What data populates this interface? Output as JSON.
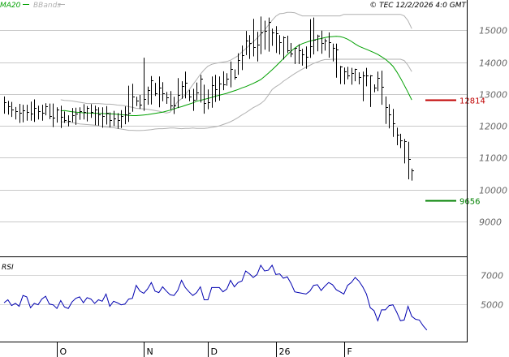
{
  "header": {
    "legend": [
      {
        "label": "MA20",
        "color": "#00a000"
      },
      {
        "label": "BBands",
        "color": "#b0b0b0"
      }
    ],
    "copyright": "© TEC 12/2/2026 4:0 GMT"
  },
  "levels": {
    "resistance": {
      "value": 12814,
      "label": "12814",
      "color": "#c00000"
    },
    "support": {
      "value": 9656,
      "label": "9656",
      "color": "#008000"
    }
  },
  "chart_data": [
    {
      "type": "ohlc",
      "y_axis": {
        "ticks": [
          9000,
          10000,
          11000,
          12000,
          13000,
          14000,
          15000
        ],
        "tick_labels": [
          "9000",
          "10000",
          "11000",
          "12000",
          "13000",
          "14000",
          "15000"
        ],
        "ylim": [
          7900,
          15950
        ],
        "side": "right"
      },
      "x_labels": [
        "O",
        "N",
        "D",
        "26",
        "F"
      ],
      "x_label_index": [
        14,
        37,
        54,
        72,
        90
      ],
      "grid": "horizontal",
      "series": [
        {
          "name": "MA20",
          "color": "#00a000",
          "values": [
            12470,
            12480,
            12460,
            12440,
            12430,
            12420,
            12410,
            12405,
            12400,
            12395,
            12390,
            12385,
            12380,
            12375,
            12370,
            12360,
            12350,
            12340,
            12330,
            12320,
            12320,
            12330,
            12340,
            12350,
            12370,
            12390,
            12410,
            12430,
            12460,
            12490,
            12530,
            12570,
            12600,
            12640,
            12680,
            12720,
            12770,
            12800,
            12830,
            12860,
            12890,
            12930,
            12960,
            12990,
            13020,
            13060,
            13100,
            13140,
            13190,
            13230,
            13280,
            13330,
            13390,
            13450,
            13550,
            13650,
            13760,
            13870,
            13990,
            14110,
            14230,
            14340,
            14440,
            14520,
            14580,
            14620,
            14660,
            14690,
            14720,
            14740,
            14770,
            14790,
            14800,
            14810,
            14800,
            14770,
            14720,
            14650,
            14570,
            14500,
            14450,
            14400,
            14350,
            14300,
            14240,
            14170,
            14090,
            13990,
            13870,
            13700,
            13500,
            13280,
            13050,
            12814
          ]
        },
        {
          "name": "BB_upper",
          "color": "#b0b0b0",
          "values": [
            12820,
            12800,
            12790,
            12780,
            12760,
            12740,
            12720,
            12700,
            12700,
            12700,
            12700,
            12690,
            12680,
            12680,
            12670,
            12650,
            12640,
            12630,
            12600,
            12580,
            12550,
            12540,
            12530,
            12520,
            12500,
            12480,
            12460,
            12430,
            12400,
            12430,
            12600,
            12760,
            12850,
            12980,
            13130,
            13290,
            13450,
            13620,
            13760,
            13870,
            13930,
            13960,
            13980,
            14000,
            14020,
            14060,
            14130,
            14200,
            14320,
            14420,
            14530,
            14640,
            14750,
            14880,
            15000,
            15160,
            15310,
            15440,
            15520,
            15530,
            15560,
            15560,
            15550,
            15500,
            15450,
            15450,
            15450,
            15450,
            15450,
            15450,
            15450,
            15450,
            15450,
            15450,
            15450,
            15500,
            15500,
            15500,
            15500,
            15500,
            15500,
            15500,
            15500,
            15500,
            15500,
            15500,
            15500,
            15500,
            15500,
            15500,
            15500,
            15450,
            15300,
            15050
          ]
        },
        {
          "name": "BB_lower",
          "color": "#b0b0b0",
          "values": [
            12120,
            12120,
            12120,
            12100,
            12080,
            12060,
            12050,
            12040,
            12030,
            12020,
            12000,
            11980,
            11960,
            11950,
            11940,
            11920,
            11900,
            11880,
            11860,
            11860,
            11850,
            11850,
            11860,
            11870,
            11880,
            11900,
            11910,
            11910,
            11920,
            11930,
            11930,
            11920,
            11910,
            11920,
            11920,
            11930,
            11920,
            11920,
            11920,
            11930,
            11950,
            11970,
            12000,
            12040,
            12080,
            12130,
            12190,
            12260,
            12340,
            12410,
            12490,
            12570,
            12630,
            12700,
            12800,
            12960,
            13140,
            13230,
            13300,
            13400,
            13480,
            13560,
            13640,
            13710,
            13780,
            13840,
            13900,
            13960,
            14000,
            14050,
            14080,
            14080,
            14090,
            14090,
            14090,
            14090,
            14090,
            14090,
            14090,
            14090,
            14090,
            14090,
            14090,
            14090,
            14090,
            14090,
            14090,
            14090,
            14090,
            14090,
            14090,
            14050,
            13900,
            13700
          ]
        },
        {
          "name": "Close",
          "color": "#000000",
          "values": [
            12750,
            12620,
            12500,
            12450,
            12420,
            12480,
            12430,
            12380,
            12560,
            12450,
            12400,
            12620,
            12300,
            12250,
            12500,
            12280,
            12170,
            12160,
            12320,
            12380,
            12470,
            12430,
            12550,
            12430,
            12500,
            12350,
            12300,
            12420,
            12190,
            12240,
            12180,
            12300,
            12350,
            12420,
            12910,
            12790,
            12660,
            12840,
            13130,
            13440,
            13010,
            13200,
            13020,
            12890,
            12640,
            12650,
            12980,
            13250,
            13350,
            12920,
            12810,
            13040,
            13480,
            12720,
            12750,
            13280,
            13160,
            13320,
            13300,
            13490,
            13790,
            13520,
            14070,
            14210,
            14680,
            14600,
            14460,
            14540,
            14940,
            14970,
            15270,
            14930,
            14910,
            14630,
            14780,
            14370,
            14260,
            14440,
            14370,
            14250,
            14170,
            14500,
            14710,
            14820,
            14610,
            14680,
            14620,
            14440,
            14390,
            13860,
            13710,
            13590,
            13650,
            13790,
            13530,
            13590,
            13580,
            13590,
            13210,
            13510,
            13220,
            12590,
            12350,
            12070,
            11710,
            11540,
            11510,
            10960,
            10600
          ]
        },
        {
          "name": "High",
          "color": "#000000",
          "values": [
            12920,
            12780,
            12750,
            12590,
            12690,
            12660,
            12660,
            12760,
            12830,
            12630,
            12660,
            12710,
            12700,
            12700,
            12580,
            12630,
            12450,
            12330,
            12560,
            12570,
            12580,
            12680,
            12620,
            12680,
            12630,
            12580,
            12580,
            12620,
            12420,
            12470,
            12400,
            12490,
            12610,
            13260,
            13320,
            12910,
            12970,
            14140,
            13230,
            13560,
            13350,
            13550,
            13370,
            13060,
            13090,
            12910,
            13500,
            13400,
            13700,
            13130,
            13160,
            13360,
            13600,
            13290,
            13140,
            13550,
            13600,
            13550,
            13710,
            13650,
            14020,
            13770,
            14280,
            14520,
            14980,
            14850,
            15360,
            14950,
            15430,
            15300,
            15400,
            15050,
            15130,
            14850,
            14810,
            14830,
            14600,
            14440,
            14560,
            14420,
            14490,
            15350,
            15400,
            14860,
            14990,
            14740,
            14930,
            14580,
            14580,
            13880,
            13830,
            13850,
            13820,
            13790,
            13680,
            13700,
            13820,
            13590,
            13300,
            13700,
            13730,
            12920,
            12680,
            12530,
            11940,
            11750,
            11590,
            11500,
            10660
          ]
        },
        {
          "name": "Low",
          "color": "#000000",
          "values": [
            12380,
            12350,
            12280,
            12200,
            12090,
            12110,
            12160,
            12160,
            12120,
            12200,
            12160,
            12330,
            12210,
            11960,
            12100,
            11930,
            12090,
            11980,
            12110,
            12030,
            12190,
            12200,
            12140,
            12250,
            12020,
            12010,
            11940,
            12040,
            11950,
            11990,
            11910,
            11930,
            12050,
            12120,
            12440,
            12620,
            12530,
            12470,
            12660,
            12670,
            12940,
            12580,
            12770,
            12690,
            12500,
            12370,
            12560,
            12850,
            12860,
            12770,
            12470,
            12800,
            12730,
            12380,
            12520,
            12570,
            12750,
            12790,
            13120,
            13260,
            13210,
            13450,
            13600,
            13750,
            14220,
            14100,
            14180,
            14020,
            14250,
            14390,
            14330,
            14510,
            14290,
            14240,
            14080,
            14290,
            14160,
            13940,
            13940,
            13890,
            13790,
            14130,
            14240,
            14340,
            14260,
            14360,
            14140,
            14020,
            13510,
            13310,
            13300,
            13460,
            13290,
            13400,
            13300,
            12770,
            13240,
            12590,
            13050,
            13090,
            12660,
            12060,
            11920,
            11650,
            11390,
            11300,
            10820,
            10320,
            10280
          ]
        }
      ]
    },
    {
      "type": "line",
      "title": "RSI",
      "y_axis": {
        "ticks": [
          5000,
          7000
        ],
        "tick_labels": [
          "5000",
          "7000"
        ],
        "ylim": [
          2400,
          8200
        ],
        "side": "right"
      },
      "grid": "horizontal",
      "series": [
        {
          "name": "RSI",
          "color": "#0000b0",
          "values": [
            5100,
            5300,
            4900,
            5050,
            4850,
            5600,
            5500,
            4750,
            5050,
            4950,
            5350,
            5550,
            5000,
            4950,
            4700,
            5250,
            4800,
            4700,
            5150,
            5400,
            5500,
            5100,
            5450,
            5350,
            5050,
            5300,
            5200,
            5700,
            4850,
            5200,
            5100,
            4950,
            5000,
            5350,
            5400,
            6300,
            5900,
            5750,
            6050,
            6500,
            5900,
            5800,
            6200,
            5900,
            5650,
            5600,
            5950,
            6650,
            6150,
            5850,
            5600,
            5800,
            6200,
            5300,
            5300,
            6150,
            6150,
            6150,
            5850,
            6050,
            6650,
            6200,
            6500,
            6600,
            7300,
            7100,
            6850,
            7050,
            7700,
            7300,
            7350,
            7700,
            7050,
            7100,
            6800,
            6900,
            6450,
            5850,
            5800,
            5750,
            5700,
            5900,
            6300,
            6350,
            5950,
            6250,
            6500,
            6350,
            6000,
            5850,
            5700,
            6300,
            6500,
            6850,
            6600,
            6200,
            5700,
            4750,
            4550,
            3850,
            4600,
            4600,
            4900,
            4950,
            4450,
            3850,
            3900,
            4850,
            4150,
            3950,
            3900,
            3500,
            3200
          ]
        }
      ]
    }
  ]
}
